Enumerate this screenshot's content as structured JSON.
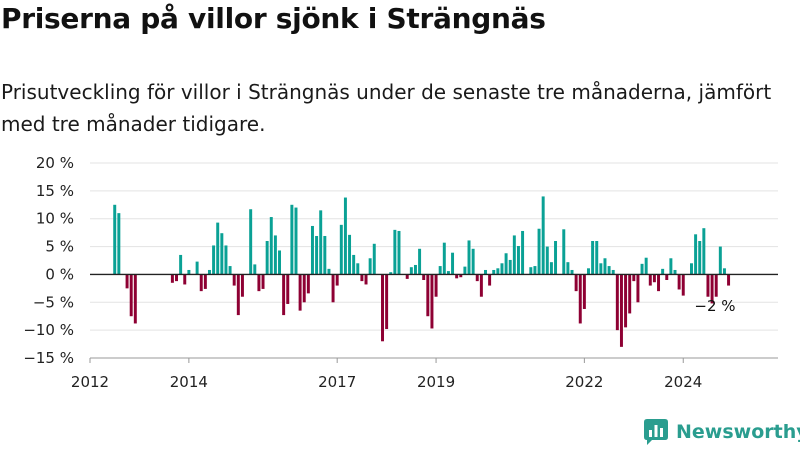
{
  "title": "Priserna på villor sjönk i Strängnäs",
  "subtitle": "Prisutveckling för villor i Strängnäs under de senaste tre månaderna, jämfört med tre månader tidigare.",
  "brand": {
    "name": "Newsworthy",
    "color": "#2a9d8f",
    "icon": "newsworthy-logo-icon"
  },
  "colors": {
    "positive": "#0aa195",
    "negative": "#8e0033",
    "grid": "#e3e3e3",
    "zero_line": "#222222"
  },
  "chart_data": {
    "type": "bar",
    "x_start": "2012-07",
    "x_range": [
      "2012-01",
      "2025-12"
    ],
    "ylim": [
      -15,
      20
    ],
    "yticks": [
      -15,
      -10,
      -5,
      0,
      5,
      10,
      15,
      20
    ],
    "ytick_labels": [
      "−15 %",
      "−10 %",
      "−5 %",
      "0 %",
      "5 %",
      "10 %",
      "15 %",
      "20 %"
    ],
    "xtick_labels": [
      "2012",
      "2014",
      "2017",
      "2019",
      "2022",
      "2024"
    ],
    "xticks": [
      "2012-01",
      "2014-01",
      "2017-01",
      "2019-01",
      "2022-01",
      "2024-01"
    ],
    "grid": true,
    "annotations": [
      {
        "text": "−2 %",
        "x": "2024-12"
      }
    ],
    "values": [
      12.5,
      11,
      0,
      -2.5,
      -7.5,
      -8.8,
      0,
      0,
      0,
      0,
      0,
      0,
      0,
      0,
      -1.5,
      -1.2,
      3.5,
      -1.8,
      0.8,
      0,
      2.3,
      -3,
      -2.6,
      0.8,
      5.2,
      9.3,
      7.4,
      5.2,
      1.5,
      -2,
      -7.3,
      -4,
      0,
      11.7,
      1.8,
      -3,
      -2.6,
      6,
      10.3,
      7,
      4.3,
      -7.3,
      -5.3,
      12.5,
      12,
      -6.5,
      -5,
      -3.4,
      8.7,
      6.9,
      11.5,
      6.9,
      1,
      -5,
      -2,
      8.9,
      13.8,
      7.1,
      3.5,
      2,
      -1.2,
      -1.8,
      2.9,
      5.5,
      0,
      -12,
      -9.8,
      0.4,
      8,
      7.8,
      0,
      -0.8,
      1.3,
      1.7,
      4.6,
      -1,
      -7.5,
      -9.7,
      -4,
      1.5,
      5.7,
      0.6,
      3.9,
      -0.7,
      -0.5,
      1.4,
      6.1,
      4.6,
      -1.2,
      -4,
      0.8,
      -2,
      0.8,
      1.1,
      2,
      3.8,
      2.6,
      7,
      5.1,
      7.8,
      0,
      1.3,
      1.5,
      8.2,
      14,
      5,
      2.2,
      6,
      0,
      8.1,
      2.2,
      0.8,
      -3,
      -8.8,
      -6.2,
      1.1,
      6,
      6,
      2,
      2.9,
      1.5,
      0.8,
      -10,
      -13,
      -9.5,
      -7,
      -1.2,
      -5,
      1.9,
      3,
      -2,
      -1.4,
      -3,
      1,
      -1,
      2.9,
      0.8,
      -2.7,
      -3.8,
      0,
      2,
      7.2,
      6,
      8.3,
      -4,
      -5.2,
      -4,
      5,
      1.1,
      -2
    ]
  }
}
